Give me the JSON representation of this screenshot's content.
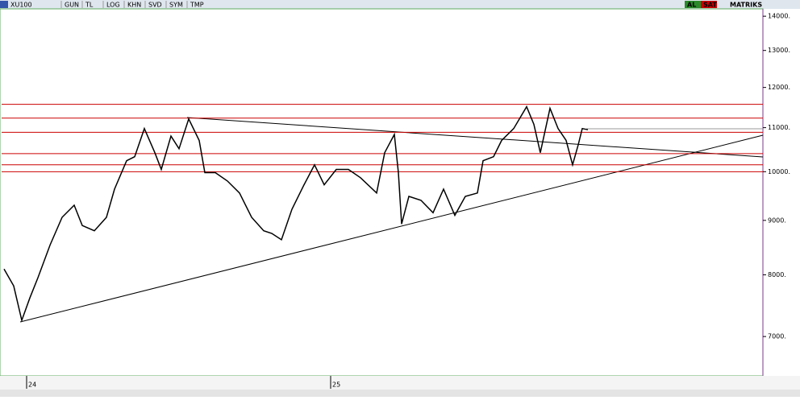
{
  "toolbar": {
    "symbol": "XU100",
    "buttons": [
      "GUN",
      "TL",
      "LOG",
      "KHN",
      "SVD",
      "SYM",
      "TMP"
    ],
    "right": [
      "AL",
      "SAT",
      "MATRIKS"
    ]
  },
  "chart_data": {
    "type": "line",
    "color": "#000000",
    "log_scale": true,
    "x": [
      3,
      15,
      25,
      35,
      45,
      60,
      75,
      90,
      100,
      115,
      130,
      140,
      155,
      165,
      177,
      190,
      198,
      210,
      220,
      232,
      245,
      252,
      265,
      280,
      295,
      310,
      325,
      335,
      347,
      360,
      375,
      388,
      400,
      415,
      430,
      445,
      465,
      475,
      487,
      492,
      496,
      505,
      520,
      535,
      548,
      562,
      575,
      590,
      597,
      610,
      620,
      635,
      651,
      660,
      668,
      680,
      690,
      700,
      708,
      715,
      720,
      727
    ],
    "values": [
      8100,
      7810,
      7250,
      7610,
      7950,
      8530,
      9060,
      9300,
      8900,
      8800,
      9060,
      9630,
      10240,
      10330,
      10980,
      10420,
      10050,
      10800,
      10510,
      11210,
      10700,
      9980,
      9980,
      9800,
      9550,
      9060,
      8800,
      8750,
      8630,
      9220,
      9720,
      10150,
      9720,
      10050,
      10050,
      9870,
      9550,
      10420,
      10840,
      9980,
      8930,
      9480,
      9400,
      9150,
      9630,
      9100,
      9480,
      9550,
      10240,
      10330,
      10700,
      10980,
      11510,
      11080,
      10420,
      11470,
      10980,
      10700,
      10150,
      10600,
      10980,
      10950
    ],
    "levels": [
      11570,
      11230,
      10890,
      10400,
      10150,
      10000
    ],
    "level_color": "#cc0000",
    "xlim": [
      0,
      944
    ],
    "xticks": [
      {
        "value": 31,
        "label": "24"
      },
      {
        "value": 408,
        "label": "25"
      }
    ],
    "ylim": [
      6440,
      14200
    ],
    "yticks": [
      {
        "value": 7000,
        "label": "7000."
      },
      {
        "value": 8000,
        "label": "8000."
      },
      {
        "value": 9000,
        "label": "9000."
      },
      {
        "value": 10000,
        "label": "10000."
      },
      {
        "value": 11000,
        "label": "11000."
      },
      {
        "value": 12000,
        "label": "12000."
      },
      {
        "value": 13000,
        "label": "13000."
      },
      {
        "value": 14000,
        "label": "14000."
      }
    ]
  }
}
